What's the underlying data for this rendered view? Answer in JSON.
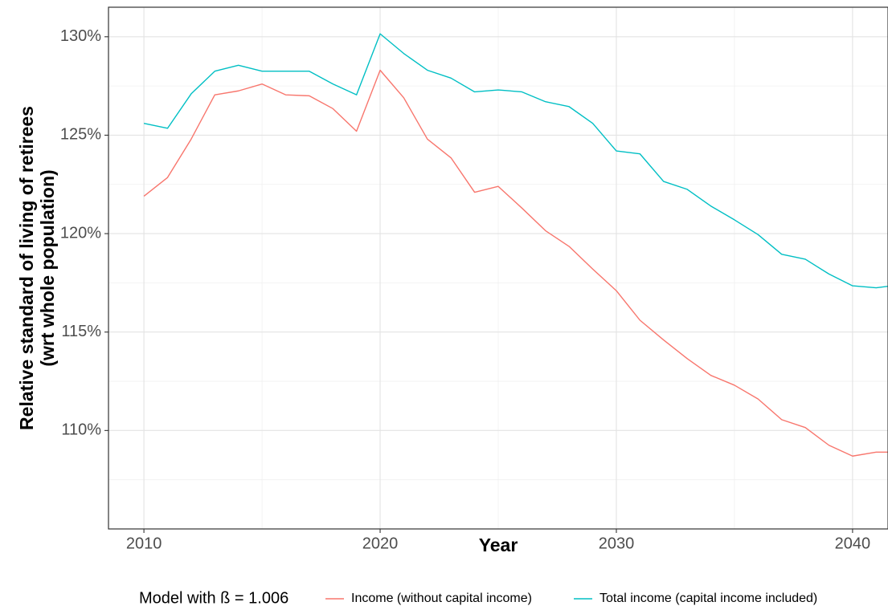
{
  "chart_data": {
    "type": "line",
    "xlabel": "Year",
    "ylabel_lines": [
      "Relative standard of living of retirees",
      "(wrt whole population)"
    ],
    "xlim": [
      2008.5,
      2041.5
    ],
    "ylim": [
      105,
      131.5
    ],
    "x_ticks": [
      2010,
      2020,
      2030,
      2040
    ],
    "x_tick_labels": [
      "2010",
      "2020",
      "2030",
      "2040"
    ],
    "y_ticks": [
      110,
      115,
      120,
      125,
      130
    ],
    "y_tick_labels": [
      "110%",
      "115%",
      "120%",
      "125%",
      "130%"
    ],
    "grid": true,
    "legend_position": "bottom",
    "legend_title": "Model with ß = 1.006",
    "x": [
      2010,
      2011,
      2012,
      2013,
      2014,
      2015,
      2016,
      2017,
      2018,
      2019,
      2020,
      2021,
      2022,
      2023,
      2024,
      2025,
      2026,
      2027,
      2028,
      2029,
      2030,
      2031,
      2032,
      2033,
      2034,
      2035,
      2036,
      2037,
      2038,
      2039,
      2040,
      2041,
      2042
    ],
    "series": [
      {
        "name": "Income (without capital income)",
        "color": "#F8766D",
        "values": [
          121.9,
          122.85,
          124.8,
          127.05,
          127.25,
          127.6,
          127.05,
          127.0,
          126.35,
          125.2,
          128.3,
          126.9,
          124.8,
          123.85,
          122.1,
          122.4,
          121.3,
          120.15,
          119.35,
          118.2,
          117.1,
          115.6,
          114.6,
          113.65,
          112.8,
          112.3,
          111.6,
          110.55,
          110.15,
          109.25,
          108.7,
          108.9,
          108.9
        ]
      },
      {
        "name": "Total income (capital income included)",
        "color": "#00BFC4",
        "values": [
          125.6,
          125.35,
          127.1,
          128.25,
          128.55,
          128.25,
          128.25,
          128.25,
          127.6,
          127.05,
          130.15,
          129.15,
          128.3,
          127.9,
          127.2,
          127.3,
          127.2,
          126.7,
          126.45,
          125.6,
          124.2,
          124.05,
          122.65,
          122.25,
          121.4,
          120.7,
          119.95,
          118.95,
          118.7,
          117.95,
          117.35,
          117.25,
          117.4
        ]
      }
    ]
  }
}
